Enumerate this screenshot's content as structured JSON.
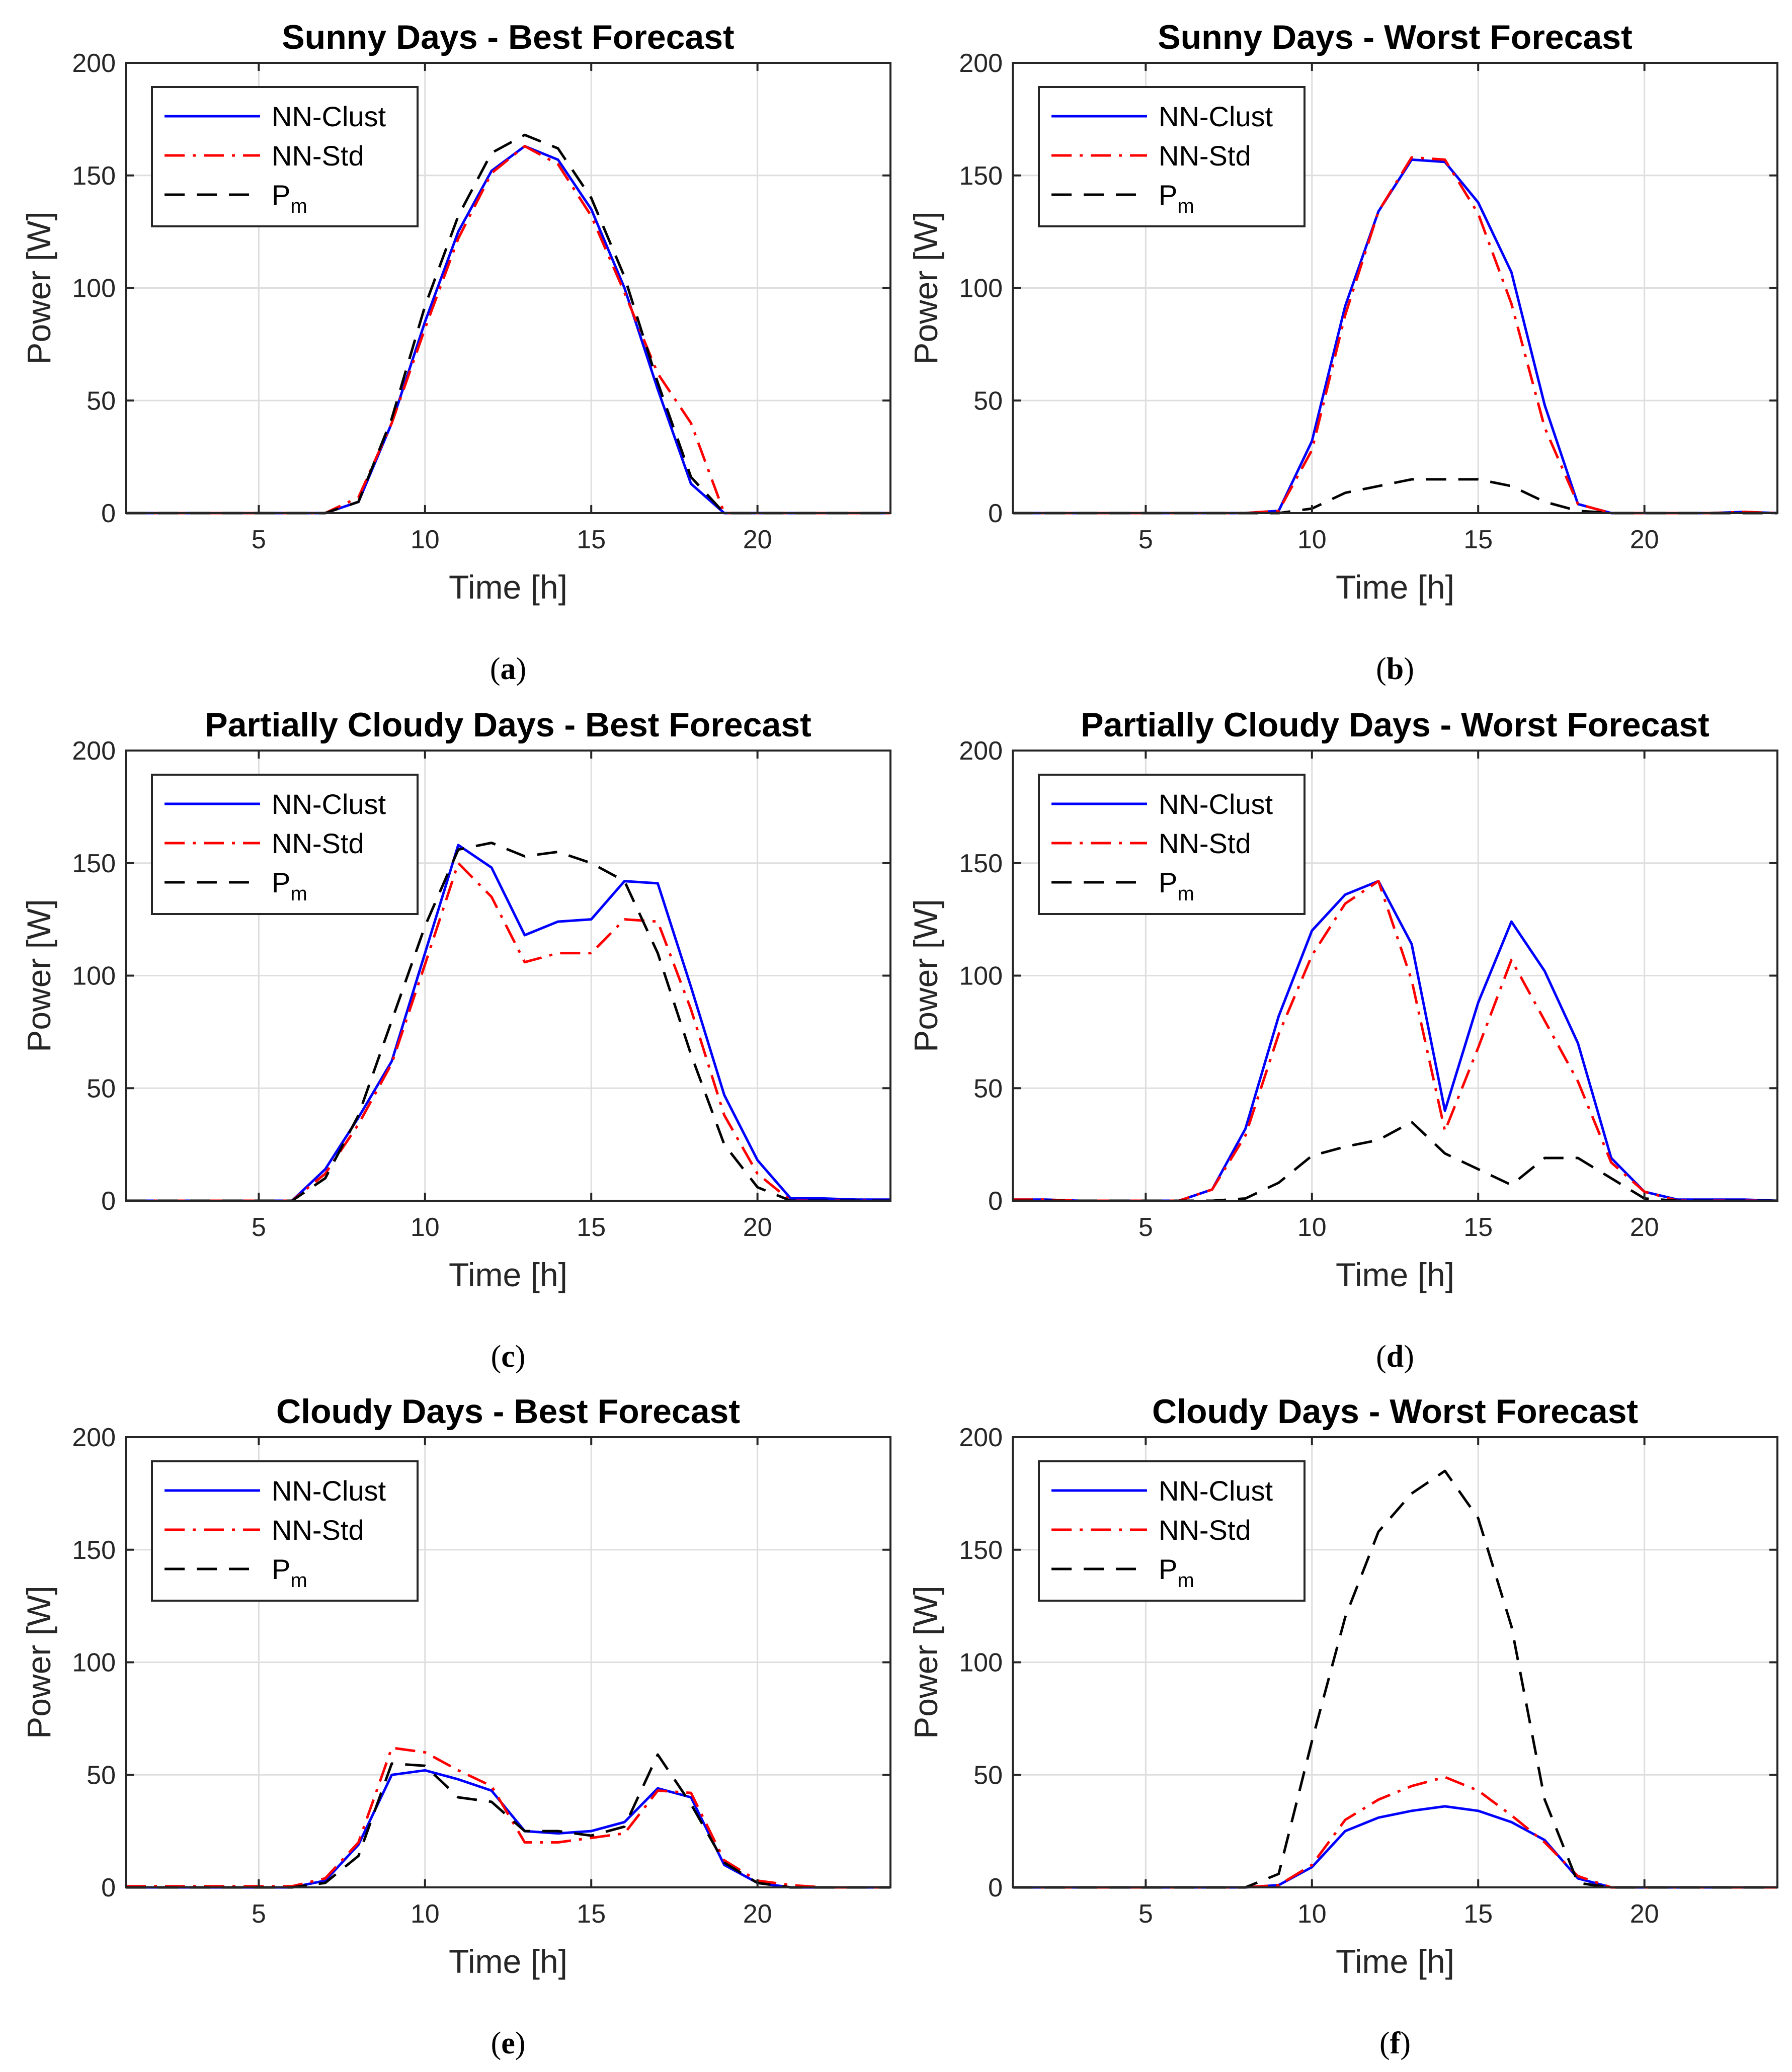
{
  "chart_data": [
    {
      "type": "line",
      "panel": "a",
      "title": "Sunny Days - Best Forecast",
      "xlabel": "Time [h]",
      "ylabel": "Power [W]",
      "xlim": [
        1,
        24
      ],
      "ylim": [
        0,
        200
      ],
      "xticks": [
        5,
        10,
        15,
        20
      ],
      "yticks": [
        0,
        50,
        100,
        150,
        200
      ],
      "grid": true,
      "legend": "top-left",
      "x": [
        1,
        2,
        3,
        4,
        5,
        6,
        7,
        8,
        9,
        10,
        11,
        12,
        13,
        14,
        15,
        16,
        17,
        18,
        19,
        20,
        21,
        22,
        23,
        24
      ],
      "series": [
        {
          "name": "NN-Clust",
          "color": "#0000ff",
          "dash": "solid",
          "values": [
            0,
            0,
            0,
            0,
            0,
            0,
            0,
            5,
            40,
            85,
            125,
            152,
            163,
            157,
            135,
            100,
            55,
            13,
            0,
            0,
            0,
            0,
            0,
            0
          ]
        },
        {
          "name": "NN-Std",
          "color": "#ff0000",
          "dash": "dashdot",
          "values": [
            0,
            0,
            0,
            0,
            0,
            0,
            0,
            7,
            40,
            82,
            122,
            151,
            163,
            155,
            132,
            98,
            62,
            40,
            0,
            0,
            0,
            0,
            0,
            0
          ]
        },
        {
          "name": "P",
          "sub": "m",
          "color": "#000000",
          "dash": "dashed",
          "values": [
            0,
            0,
            0,
            0,
            0,
            0,
            0,
            5,
            42,
            92,
            132,
            160,
            168,
            162,
            140,
            105,
            58,
            16,
            0,
            0,
            0,
            0,
            0,
            0
          ]
        }
      ]
    },
    {
      "type": "line",
      "panel": "b",
      "title": "Sunny Days - Worst Forecast",
      "xlabel": "Time [h]",
      "ylabel": "Power [W]",
      "xlim": [
        1,
        24
      ],
      "ylim": [
        0,
        200
      ],
      "xticks": [
        5,
        10,
        15,
        20
      ],
      "yticks": [
        0,
        50,
        100,
        150,
        200
      ],
      "grid": true,
      "legend": "top-left",
      "x": [
        1,
        2,
        3,
        4,
        5,
        6,
        7,
        8,
        9,
        10,
        11,
        12,
        13,
        14,
        15,
        16,
        17,
        18,
        19,
        20,
        21,
        22,
        23,
        24
      ],
      "series": [
        {
          "name": "NN-Clust",
          "color": "#0000ff",
          "dash": "solid",
          "values": [
            0,
            0,
            0,
            0,
            0,
            0,
            0,
            0,
            1,
            32,
            92,
            134,
            157,
            156,
            138,
            107,
            48,
            4,
            0,
            0,
            0,
            0,
            0.5,
            0
          ]
        },
        {
          "name": "NN-Std",
          "color": "#ff0000",
          "dash": "dashdot",
          "values": [
            0,
            0,
            0,
            0,
            0,
            0,
            0,
            0,
            1,
            28,
            88,
            134,
            158,
            157,
            133,
            93,
            38,
            4,
            0,
            0,
            0,
            0,
            0.5,
            0
          ]
        },
        {
          "name": "P",
          "sub": "m",
          "color": "#000000",
          "dash": "dashed",
          "values": [
            0,
            0,
            0,
            0,
            0,
            0,
            0,
            0,
            0,
            2,
            9,
            12,
            15,
            15,
            15,
            12,
            5,
            1,
            0,
            0,
            0,
            0,
            0,
            0
          ]
        }
      ]
    },
    {
      "type": "line",
      "panel": "c",
      "title": "Partially Cloudy Days - Best Forecast",
      "xlabel": "Time [h]",
      "ylabel": "Power [W]",
      "xlim": [
        1,
        24
      ],
      "ylim": [
        0,
        200
      ],
      "xticks": [
        5,
        10,
        15,
        20
      ],
      "yticks": [
        0,
        50,
        100,
        150,
        200
      ],
      "grid": true,
      "legend": "top-left",
      "x": [
        1,
        2,
        3,
        4,
        5,
        6,
        7,
        8,
        9,
        10,
        11,
        12,
        13,
        14,
        15,
        16,
        17,
        18,
        19,
        20,
        21,
        22,
        23,
        24
      ],
      "series": [
        {
          "name": "NN-Clust",
          "color": "#0000ff",
          "dash": "solid",
          "values": [
            0,
            0,
            0,
            0,
            0,
            0,
            14,
            37,
            62,
            110,
            158,
            148,
            118,
            124,
            125,
            142,
            141,
            95,
            47,
            18,
            1,
            1,
            0.5,
            0.5
          ]
        },
        {
          "name": "NN-Std",
          "color": "#ff0000",
          "dash": "dashdot",
          "values": [
            0,
            0,
            0,
            0,
            0,
            0,
            12,
            34,
            61,
            105,
            150,
            135,
            106,
            110,
            110,
            125,
            124,
            85,
            38,
            12,
            0,
            0,
            0,
            0
          ]
        },
        {
          "name": "P",
          "sub": "m",
          "color": "#000000",
          "dash": "dashed",
          "values": [
            0,
            0,
            0,
            0,
            0,
            0,
            10,
            38,
            80,
            122,
            156,
            159,
            153,
            155,
            150,
            142,
            110,
            65,
            25,
            6,
            0,
            0,
            0,
            0
          ]
        }
      ]
    },
    {
      "type": "line",
      "panel": "d",
      "title": "Partially Cloudy Days - Worst Forecast",
      "xlabel": "Time [h]",
      "ylabel": "Power [W]",
      "xlim": [
        1,
        24
      ],
      "ylim": [
        0,
        200
      ],
      "xticks": [
        5,
        10,
        15,
        20
      ],
      "yticks": [
        0,
        50,
        100,
        150,
        200
      ],
      "grid": true,
      "legend": "top-left",
      "x": [
        1,
        2,
        3,
        4,
        5,
        6,
        7,
        8,
        9,
        10,
        11,
        12,
        13,
        14,
        15,
        16,
        17,
        18,
        19,
        20,
        21,
        22,
        23,
        24
      ],
      "series": [
        {
          "name": "NN-Clust",
          "color": "#0000ff",
          "dash": "solid",
          "values": [
            0.5,
            0.5,
            0,
            0,
            0,
            0,
            5,
            32,
            82,
            120,
            136,
            142,
            114,
            40,
            88,
            124,
            102,
            70,
            19,
            4,
            0.5,
            0.5,
            0.5,
            0
          ]
        },
        {
          "name": "NN-Std",
          "color": "#ff0000",
          "dash": "dashdot",
          "values": [
            0.5,
            0.5,
            0,
            0,
            0,
            0,
            5,
            29,
            74,
            109,
            132,
            142,
            98,
            31,
            68,
            107,
            80,
            53,
            17,
            4,
            0,
            0,
            0,
            0
          ]
        },
        {
          "name": "P",
          "sub": "m",
          "color": "#000000",
          "dash": "dashed",
          "values": [
            0,
            0,
            0,
            0,
            0,
            0,
            0,
            1,
            8,
            20,
            24,
            27,
            35,
            21,
            14,
            7,
            19,
            19,
            10,
            1,
            0,
            0,
            0,
            0
          ]
        }
      ]
    },
    {
      "type": "line",
      "panel": "e",
      "title": "Cloudy Days - Best Forecast",
      "xlabel": "Time [h]",
      "ylabel": "Power [W]",
      "xlim": [
        1,
        24
      ],
      "ylim": [
        0,
        200
      ],
      "xticks": [
        5,
        10,
        15,
        20
      ],
      "yticks": [
        0,
        50,
        100,
        150,
        200
      ],
      "grid": true,
      "legend": "top-left",
      "x": [
        1,
        2,
        3,
        4,
        5,
        6,
        7,
        8,
        9,
        10,
        11,
        12,
        13,
        14,
        15,
        16,
        17,
        18,
        19,
        20,
        21,
        22,
        23,
        24
      ],
      "series": [
        {
          "name": "NN-Clust",
          "color": "#0000ff",
          "dash": "solid",
          "values": [
            0,
            0,
            0,
            0,
            0,
            0,
            3,
            19,
            50,
            52,
            48,
            43,
            25,
            24,
            25,
            29,
            44,
            40,
            10,
            2,
            0,
            0,
            0,
            0
          ]
        },
        {
          "name": "NN-Std",
          "color": "#ff0000",
          "dash": "dashdot",
          "values": [
            0.5,
            0.5,
            0.5,
            0.5,
            0.5,
            0.5,
            4,
            20,
            62,
            60,
            52,
            45,
            20,
            20,
            22,
            24,
            43,
            42,
            12,
            3,
            1,
            0,
            0,
            0
          ]
        },
        {
          "name": "P",
          "sub": "m",
          "color": "#000000",
          "dash": "dashed",
          "values": [
            0,
            0,
            0,
            0,
            0,
            0,
            2,
            14,
            55,
            54,
            40,
            38,
            25,
            25,
            23,
            27,
            59,
            37,
            11,
            2,
            0,
            0,
            0,
            0
          ]
        }
      ]
    },
    {
      "type": "line",
      "panel": "f",
      "title": "Cloudy Days - Worst Forecast",
      "xlabel": "Time [h]",
      "ylabel": "Power [W]",
      "xlim": [
        1,
        24
      ],
      "ylim": [
        0,
        200
      ],
      "xticks": [
        5,
        10,
        15,
        20
      ],
      "yticks": [
        0,
        50,
        100,
        150,
        200
      ],
      "grid": true,
      "legend": "top-left",
      "x": [
        1,
        2,
        3,
        4,
        5,
        6,
        7,
        8,
        9,
        10,
        11,
        12,
        13,
        14,
        15,
        16,
        17,
        18,
        19,
        20,
        21,
        22,
        23,
        24
      ],
      "series": [
        {
          "name": "NN-Clust",
          "color": "#0000ff",
          "dash": "solid",
          "values": [
            0,
            0,
            0,
            0,
            0,
            0,
            0,
            0,
            1,
            9,
            25,
            31,
            34,
            36,
            34,
            29,
            21,
            4,
            0,
            0,
            0,
            0,
            0,
            0
          ]
        },
        {
          "name": "NN-Std",
          "color": "#ff0000",
          "dash": "dashdot",
          "values": [
            0,
            0,
            0,
            0,
            0,
            0,
            0,
            0,
            1,
            10,
            30,
            39,
            45,
            49,
            43,
            32,
            20,
            5,
            0,
            0,
            0,
            0,
            0,
            0
          ]
        },
        {
          "name": "P",
          "sub": "m",
          "color": "#000000",
          "dash": "dashed",
          "values": [
            0,
            0,
            0,
            0,
            0,
            0,
            0,
            0,
            6,
            65,
            120,
            158,
            175,
            185,
            164,
            116,
            39,
            2,
            0,
            0,
            0,
            0,
            0,
            0
          ]
        }
      ]
    }
  ],
  "captions": [
    "a",
    "b",
    "c",
    "d",
    "e",
    "f"
  ]
}
